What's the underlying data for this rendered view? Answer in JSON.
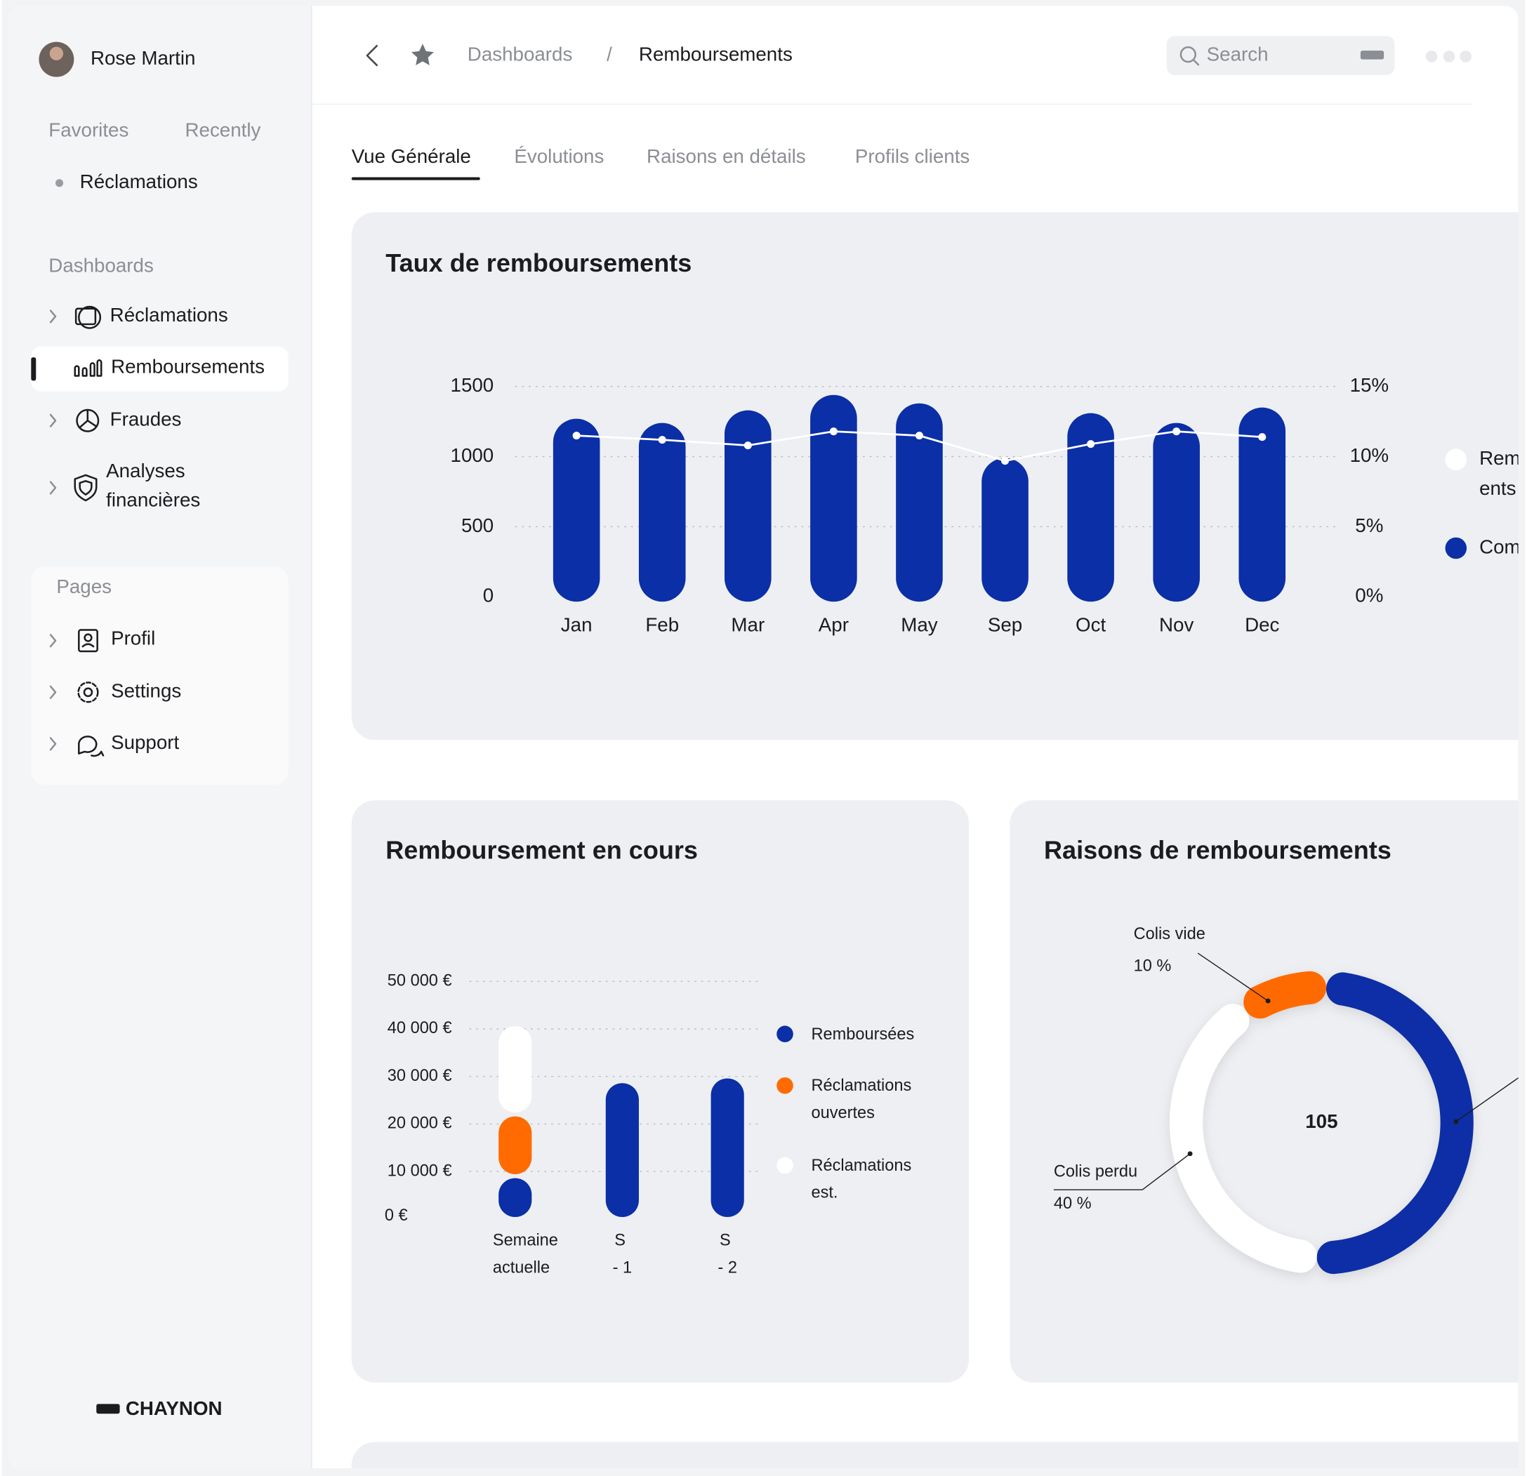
{
  "sidebar": {
    "user": "Rose Martin",
    "tabs": [
      "Favorites",
      "Recently"
    ],
    "favorites": [
      "Réclamations"
    ],
    "dashboards_label": "Dashboards",
    "dashboards": [
      "Réclamations",
      "Remboursements",
      "Fraudes",
      "Analyses financières"
    ],
    "pages_label": "Pages",
    "pages": [
      "Profil",
      "Settings",
      "Support"
    ],
    "brand": "CHAYNON"
  },
  "header": {
    "breadcrumb": [
      "Dashboards",
      "Remboursements"
    ],
    "separator": "/",
    "search": "Search"
  },
  "tabs": [
    "Vue Générale",
    "Évolutions",
    "Raisons en détails",
    "Profils clients"
  ],
  "chart_data": [
    {
      "type": "bar",
      "title": "Taux de remboursements",
      "categories": [
        "Jan",
        "Feb",
        "Mar",
        "Apr",
        "May",
        "Sep",
        "Oct",
        "Nov",
        "Dec"
      ],
      "series": [
        {
          "name": "Rem ents",
          "type": "line",
          "axis": "y2",
          "color": "#ffffff",
          "values": [
            11.5,
            11.2,
            10.8,
            11.8,
            11.5,
            9.7,
            10.9,
            11.8,
            11.4
          ]
        },
        {
          "name": "Com",
          "type": "bar",
          "color": "#0a2fa6",
          "values": [
            1270,
            1240,
            1330,
            1440,
            1380,
            990,
            1310,
            1240,
            1350
          ]
        }
      ],
      "ylim": [
        0,
        1500
      ],
      "yticks": [
        0,
        500,
        1000,
        1500
      ],
      "y2lim": [
        0,
        15
      ],
      "y2ticks": [
        {
          "value": 0,
          "label": "0%"
        },
        {
          "value": 5,
          "label": "5%"
        },
        {
          "value": 10,
          "label": "10%"
        },
        {
          "value": 15,
          "label": "15%"
        }
      ],
      "grid": true
    },
    {
      "type": "stacked_bar",
      "title": "Remboursement en cours",
      "categories": [
        "Semaine actuelle",
        "S - 1",
        "S - 2"
      ],
      "series": [
        {
          "name": "Remboursées",
          "color": "#0a2fa6",
          "values": [
            9000,
            29000,
            30000
          ]
        },
        {
          "name": "Réclamations ouvertes",
          "color": "#ff6b00",
          "values": [
            13000,
            0,
            0
          ]
        },
        {
          "name": "Réclamations est.",
          "color": "#ffffff",
          "values": [
            19000,
            0,
            0
          ]
        }
      ],
      "ylim": [
        0,
        50000
      ],
      "yticks": [
        {
          "value": 0,
          "label": "0 €"
        },
        {
          "value": 10000,
          "label": "10 000 €"
        },
        {
          "value": 20000,
          "label": "20 000 €"
        },
        {
          "value": 30000,
          "label": "30 000 €"
        },
        {
          "value": 40000,
          "label": "40 000 €"
        },
        {
          "value": 50000,
          "label": "50 000 €"
        }
      ],
      "grid": true
    },
    {
      "type": "donut",
      "title": "Raisons de remboursements",
      "center_label": "105",
      "categories": [
        null,
        "Colis perdu",
        "Colis vide"
      ],
      "values": [
        50,
        40,
        10
      ],
      "value_labels": [
        null,
        "40 %",
        "10 %"
      ],
      "colors": [
        "#0a2fa6",
        "#ffffff",
        "#ff6b00"
      ]
    }
  ]
}
